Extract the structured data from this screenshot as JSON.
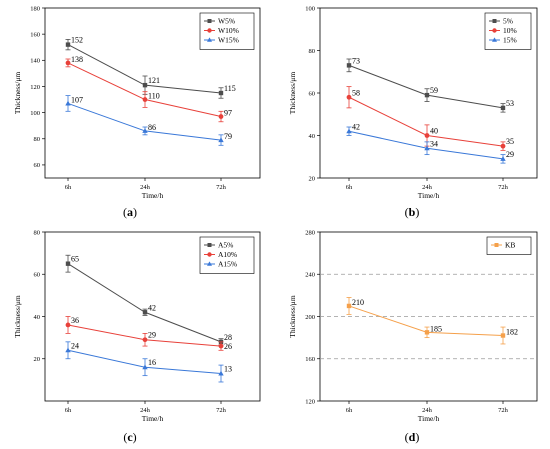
{
  "chart_data": [
    {
      "type": "line",
      "panel_label": "a",
      "categories": [
        "6h",
        "24h",
        "72h"
      ],
      "xlabel": "Time/h",
      "ylabel": "Thickness/μm",
      "ylim": [
        50,
        180
      ],
      "yticks": [
        "60",
        "80",
        "100",
        "120",
        "140",
        "160",
        "180"
      ],
      "grid": false,
      "legend_position": "top-right",
      "series": [
        {
          "name": "W5%",
          "values": [
            152,
            121,
            115
          ],
          "errors": [
            4,
            7,
            4
          ],
          "labels": [
            "152",
            "121",
            "115"
          ],
          "color": "#4d4d4d",
          "marker": "square"
        },
        {
          "name": "W10%",
          "values": [
            138,
            110,
            97
          ],
          "errors": [
            3,
            6,
            4
          ],
          "labels": [
            "138",
            "110",
            "97"
          ],
          "color": "#e8413a",
          "marker": "circle"
        },
        {
          "name": "W15%",
          "values": [
            107,
            86,
            79
          ],
          "errors": [
            6,
            3,
            4
          ],
          "labels": [
            "107",
            "86",
            "79"
          ],
          "color": "#3a78d8",
          "marker": "triangle"
        }
      ]
    },
    {
      "type": "line",
      "panel_label": "b",
      "categories": [
        "6h",
        "24h",
        "72h"
      ],
      "xlabel": "Time/h",
      "ylabel": "Thickness/μm",
      "ylim": [
        20,
        100
      ],
      "yticks": [
        "20",
        "40",
        "60",
        "80",
        "100"
      ],
      "grid": false,
      "legend_position": "top-right",
      "series": [
        {
          "name": "5%",
          "values": [
            73,
            59,
            53
          ],
          "errors": [
            3,
            3,
            2
          ],
          "labels": [
            "73",
            "59",
            "53"
          ],
          "color": "#4d4d4d",
          "marker": "square"
        },
        {
          "name": "10%",
          "values": [
            58,
            40,
            35
          ],
          "errors": [
            5,
            5,
            2
          ],
          "labels": [
            "58",
            "40",
            "35"
          ],
          "color": "#e8413a",
          "marker": "circle"
        },
        {
          "name": "15%",
          "values": [
            42,
            34,
            29
          ],
          "errors": [
            2,
            3,
            2
          ],
          "labels": [
            "42",
            "34",
            "29"
          ],
          "color": "#3a78d8",
          "marker": "triangle"
        }
      ]
    },
    {
      "type": "line",
      "panel_label": "c",
      "categories": [
        "6h",
        "24h",
        "72h"
      ],
      "xlabel": "Time/h",
      "ylabel": "Thickness/μm",
      "ylim": [
        0,
        80
      ],
      "yticks": [
        "20",
        "40",
        "60",
        "80"
      ],
      "grid": false,
      "legend_position": "top-right",
      "series": [
        {
          "name": "A5%",
          "values": [
            65,
            42,
            28
          ],
          "errors": [
            4,
            1.5,
            1.5
          ],
          "labels": [
            "65",
            "42",
            "28"
          ],
          "color": "#4d4d4d",
          "marker": "square"
        },
        {
          "name": "A10%",
          "values": [
            36,
            29,
            26
          ],
          "errors": [
            4,
            3,
            2
          ],
          "labels": [
            "36",
            "29",
            "26"
          ],
          "color": "#e8413a",
          "marker": "circle"
        },
        {
          "name": "A15%",
          "values": [
            24,
            16,
            13
          ],
          "errors": [
            4,
            4,
            4
          ],
          "labels": [
            "24",
            "16",
            "13"
          ],
          "color": "#3a78d8",
          "marker": "triangle"
        }
      ]
    },
    {
      "type": "line",
      "panel_label": "d",
      "categories": [
        "6h",
        "24h",
        "72h"
      ],
      "xlabel": "Time/h",
      "ylabel": "Thickness/μm",
      "ylim": [
        120,
        280
      ],
      "yticks": [
        "120",
        "160",
        "200",
        "240",
        "280"
      ],
      "grid": true,
      "grid_values": [
        160,
        200,
        240
      ],
      "legend_position": "top-right",
      "series": [
        {
          "name": "KB",
          "values": [
            210,
            185,
            182
          ],
          "errors": [
            8,
            5,
            8
          ],
          "labels": [
            "210",
            "185",
            "182"
          ],
          "color": "#f5a04a",
          "marker": "square"
        }
      ]
    }
  ],
  "panel_labels": [
    "(a)",
    "(b)",
    "(c)",
    "(d)"
  ]
}
